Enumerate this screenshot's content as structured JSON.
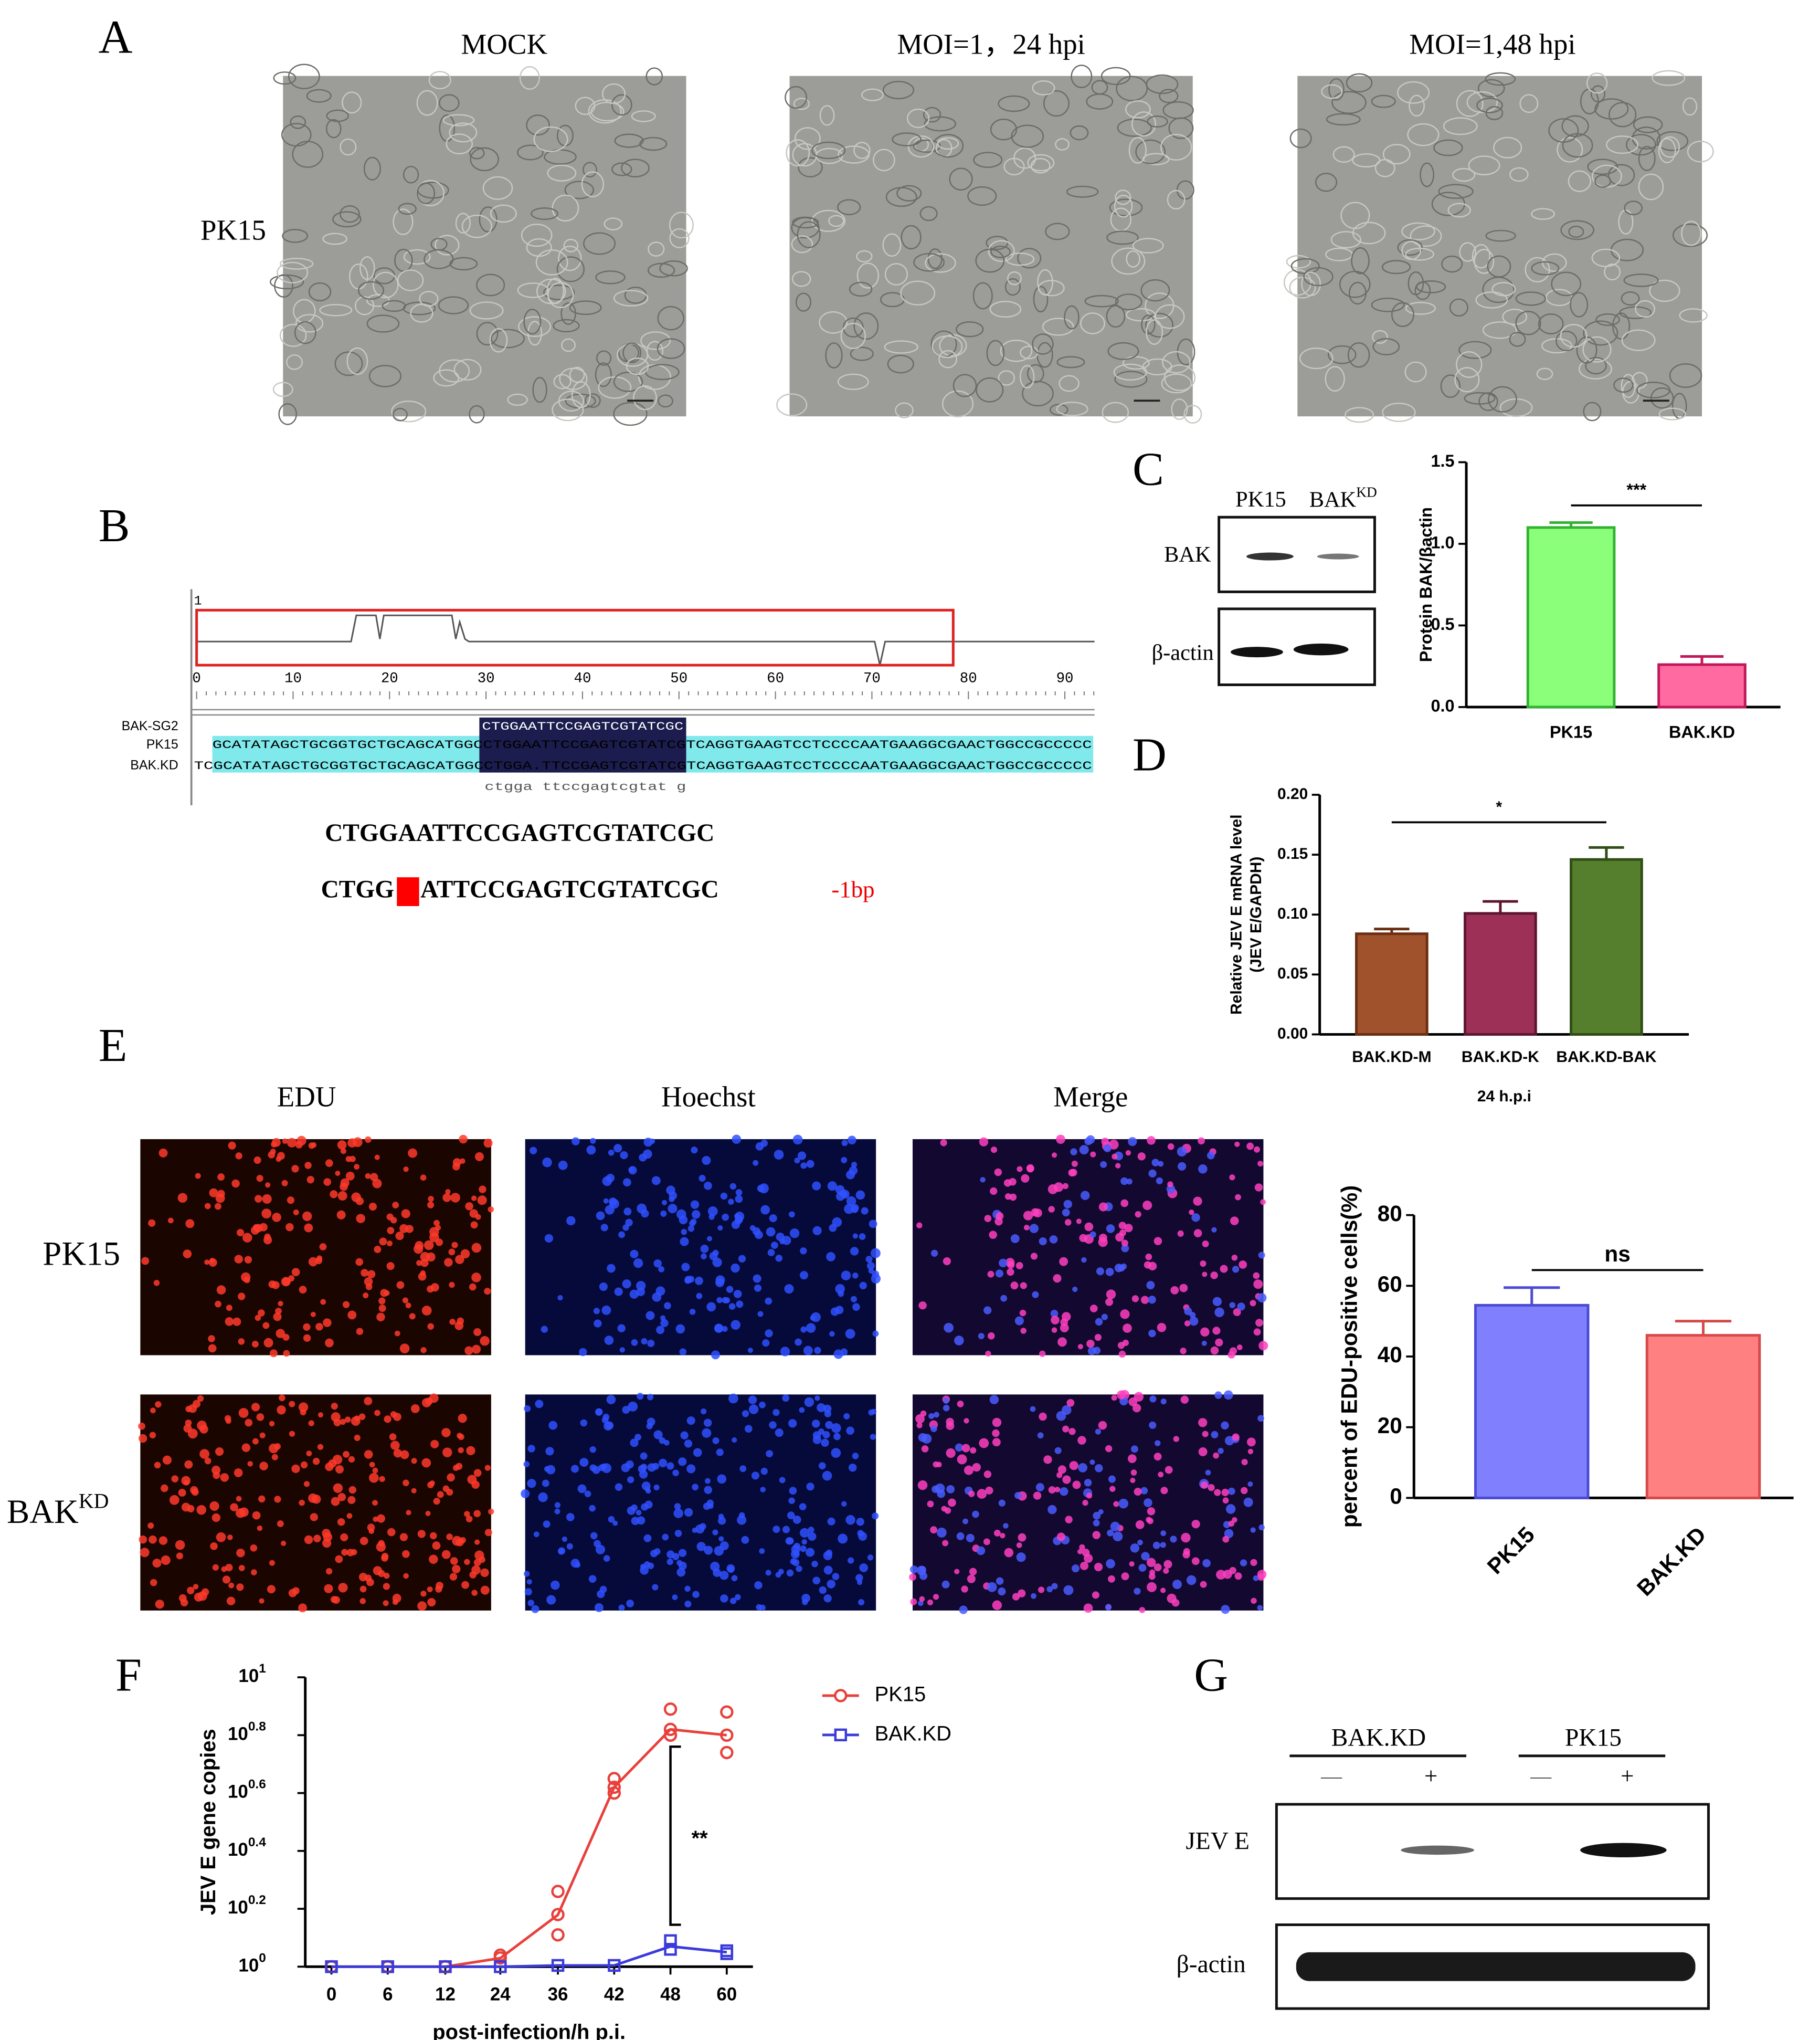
{
  "panels": {
    "A": {
      "label": "A",
      "columns": [
        "MOCK",
        "MOI=1，24 hpi",
        "MOI=1,48 hpi"
      ],
      "row": "PK15"
    },
    "B": {
      "label": "B",
      "ruler_start": "1",
      "ruler_labels": [
        "0",
        "10",
        "20",
        "30",
        "40",
        "50",
        "60",
        "70",
        "80",
        "90"
      ],
      "names": [
        "BAK-SG2",
        "PK15",
        "BAK.KD"
      ],
      "sequences": [
        "CTGGAATTCCGAGTCGTATCGC",
        "GCATATAGCTGCGGTGCTGCAGCATGGCCTGGAATTCCGAGTCGTATCGTCAGGTGAAGTCCTCCCCAATGAAGGCGAACTGGCCGCCCCC",
        "TCGCATATAGCTGCGGTGCTGCAGCATGGCCTGGA.TTCCGAGTCGTATCGTCAGGTGAAGTCCTCCCCAATGAAGGCGAACTGGCCGCCCCC"
      ],
      "consensus": "ctgga ttccgagtcgtat g",
      "target": "CTGGAATTCCGAGTCGTATCGC",
      "mutant_left": "CTGG",
      "mutant_right": "ATTCCGAGTCGTATCGC",
      "deletion": "-1bp"
    },
    "C": {
      "label": "C",
      "lanes": [
        "PK15",
        "BAK"
      ],
      "lane_sup": "KD",
      "rows": [
        "BAK",
        "β-actin"
      ]
    },
    "D": {
      "label": "D"
    },
    "E": {
      "label": "E",
      "columns": [
        "EDU",
        "Hoechst",
        "Merge"
      ],
      "rows": [
        "PK15",
        "BAK"
      ],
      "row_sup": "KD"
    },
    "F": {
      "label": "F"
    },
    "G": {
      "label": "G",
      "groups": [
        "BAK.KD",
        "PK15"
      ],
      "treatments": [
        "—",
        "+",
        "—",
        "+"
      ],
      "rows": [
        "JEV E",
        "β-actin"
      ]
    }
  },
  "chart_data": [
    {
      "type": "bar",
      "categories": [
        "PK15",
        "BAK.KD"
      ],
      "values": [
        1.1,
        0.26
      ],
      "errors": [
        0.03,
        0.05
      ],
      "colors": [
        "#8cff7a",
        "#ff6aa0"
      ],
      "edge_colors": [
        "#33b233",
        "#c2185b"
      ],
      "ylim": [
        0,
        1.5
      ],
      "yticks": [
        {
          "value": 0,
          "label": "0.0"
        },
        {
          "value": 0.5,
          "label": "0.5"
        },
        {
          "value": 1,
          "label": "1.0"
        },
        {
          "value": 1.5,
          "label": "1.5"
        }
      ],
      "y_label": "Protein BAK/βactin",
      "significance": "***"
    },
    {
      "type": "bar",
      "categories": [
        "BAK.KD-M",
        "BAK.KD-K",
        "BAK.KD-BAK"
      ],
      "values": [
        0.084,
        0.101,
        0.146
      ],
      "errors": [
        0.004,
        0.01,
        0.01
      ],
      "colors": [
        "#a0522d",
        "#9c3056",
        "#557f2d"
      ],
      "edge_colors": [
        "#6b2e12",
        "#5e1630",
        "#2f4d14"
      ],
      "ylim": [
        0,
        0.2
      ],
      "yticks": [
        {
          "value": 0,
          "label": "0.00"
        },
        {
          "value": 0.05,
          "label": "0.05"
        },
        {
          "value": 0.1,
          "label": "0.10"
        },
        {
          "value": 0.15,
          "label": "0.15"
        },
        {
          "value": 0.2,
          "label": "0.20"
        }
      ],
      "y_label": [
        "Relative JEV E mRNA level",
        "(JEV E/GAPDH)"
      ],
      "x_label": "24 h.p.i",
      "significance": "*"
    },
    {
      "type": "bar",
      "categories": [
        "PK15",
        "BAK.KD"
      ],
      "values": [
        54.5,
        46
      ],
      "errors": [
        5,
        4
      ],
      "colors": [
        "#8080ff",
        "#ff8080"
      ],
      "edge_colors": [
        "#4a4ad6",
        "#d64a4a"
      ],
      "ylim": [
        0,
        80
      ],
      "yticks": [
        0,
        20,
        40,
        60,
        80
      ],
      "y_label": "percent of EDU-positive cells(%)",
      "significance": "ns"
    },
    {
      "type": "line",
      "categories": [
        "0",
        "6",
        "12",
        "24",
        "36",
        "42",
        "48",
        "60"
      ],
      "log_y": true,
      "ylim": [
        1,
        10
      ],
      "yticks": [
        {
          "value": 1,
          "label": "10",
          "sup": "0"
        },
        {
          "value": 1.585,
          "label": "10",
          "sup": "0.2"
        },
        {
          "value": 2.512,
          "label": "10",
          "sup": "0.4"
        },
        {
          "value": 3.981,
          "label": "10",
          "sup": "0.6"
        },
        {
          "value": 6.31,
          "label": "10",
          "sup": "0.8"
        },
        {
          "value": 10,
          "label": "10",
          "sup": "1"
        }
      ],
      "y_label": "JEV E gene copies",
      "x_label": "post-infection/h p.i.",
      "significance": "**",
      "series": [
        {
          "name": "PK15",
          "color": "#e8413c",
          "marker": "circle",
          "values": [
            1,
            1,
            1,
            1.07,
            1.51,
            4.17,
            6.61,
            6.31
          ],
          "replicates": [
            [
              1
            ],
            [
              1
            ],
            [
              1
            ],
            [
              1.096,
              1.072
            ],
            [
              1.82,
              1.514,
              1.288
            ],
            [
              4.467,
              4.169,
              3.981
            ],
            [
              7.762,
              6.607,
              6.31
            ],
            [
              7.586,
              6.31,
              5.495
            ]
          ]
        },
        {
          "name": "BAK.KD",
          "color": "#3b3bdc",
          "marker": "square",
          "values": [
            1,
            1,
            1,
            1,
            1.01,
            1.01,
            1.175,
            1.122
          ],
          "replicates": [
            [
              1
            ],
            [
              1
            ],
            [
              1
            ],
            [
              1
            ],
            [
              1.01
            ],
            [
              1.01
            ],
            [
              1.23,
              1.148
            ],
            [
              1.135,
              1.109
            ]
          ]
        }
      ]
    }
  ]
}
